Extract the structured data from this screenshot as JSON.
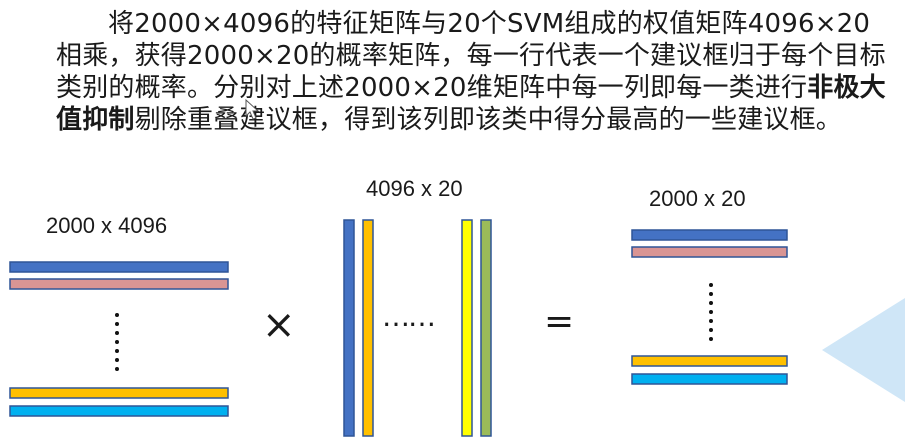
{
  "paragraph": {
    "part1": "将2000×4096的特征矩阵与20个SVM组成的权值矩阵4096×20相乘，获得2000×20的概率矩阵，每一行代表一个建议框归于每个目标类别的概率。分别对上述2000×20维矩阵中每一列即每一类进行",
    "bold": "非极大值抑制",
    "part2": "剔除重叠建议框，得到该列即该类中得分最高的一些建议框。"
  },
  "matrices": {
    "left_label": "2000 x 4096",
    "middle_label": "4096 x 20",
    "right_label": "2000 x 20",
    "multiply_symbol": "×",
    "equals_symbol": "=",
    "middle_ellipsis": "……"
  },
  "colors": {
    "blue": "#4472c4",
    "pink": "#d99594",
    "orange": "#ffc000",
    "light_blue": "#00b0f0",
    "yellow": "#ffff00",
    "green": "#9bbb59",
    "border": "#2f5597",
    "triangle": "#cfe6f7"
  }
}
